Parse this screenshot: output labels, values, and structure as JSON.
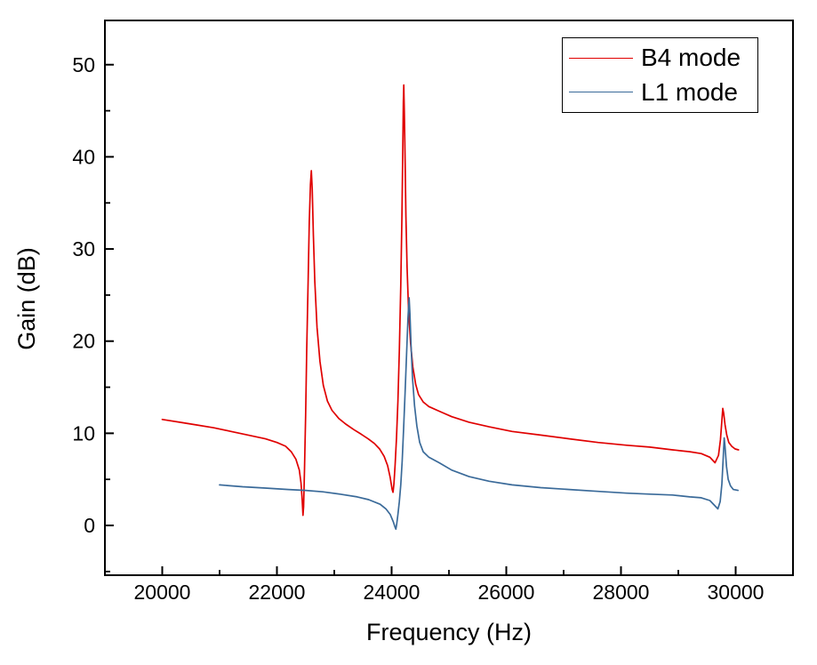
{
  "chart_data": {
    "type": "line",
    "title": "",
    "xlabel": "Frequency (Hz)",
    "ylabel": "Gain (dB)",
    "xlim": [
      19000,
      31000
    ],
    "ylim": [
      -5.4,
      54.8
    ],
    "xticks_major": [
      20000,
      22000,
      24000,
      26000,
      28000,
      30000
    ],
    "xticks_minor": [
      21000,
      23000,
      25000,
      27000,
      29000
    ],
    "yticks_major": [
      0,
      10,
      20,
      30,
      40,
      50
    ],
    "yticks_minor": [
      -5,
      5,
      15,
      25,
      35,
      45
    ],
    "grid": false,
    "legend_position": "top-right",
    "background_color": "#ffffff",
    "axis_color": "#000000",
    "series": [
      {
        "name": "B4 mode",
        "color": "#e00000",
        "points": [
          [
            20000,
            11.5
          ],
          [
            20300,
            11.2
          ],
          [
            20600,
            10.9
          ],
          [
            20900,
            10.6
          ],
          [
            21200,
            10.2
          ],
          [
            21500,
            9.8
          ],
          [
            21800,
            9.4
          ],
          [
            22000,
            9.0
          ],
          [
            22150,
            8.6
          ],
          [
            22250,
            8.0
          ],
          [
            22330,
            7.2
          ],
          [
            22390,
            6.0
          ],
          [
            22420,
            4.6
          ],
          [
            22440,
            2.8
          ],
          [
            22455,
            1.1
          ],
          [
            22465,
            2.0
          ],
          [
            22480,
            6.0
          ],
          [
            22500,
            12.0
          ],
          [
            22520,
            19.0
          ],
          [
            22545,
            27.0
          ],
          [
            22565,
            33.0
          ],
          [
            22585,
            37.0
          ],
          [
            22600,
            38.5
          ],
          [
            22615,
            36.5
          ],
          [
            22635,
            31.5
          ],
          [
            22660,
            26.5
          ],
          [
            22700,
            21.5
          ],
          [
            22750,
            17.8
          ],
          [
            22810,
            15.2
          ],
          [
            22880,
            13.5
          ],
          [
            22960,
            12.5
          ],
          [
            23080,
            11.6
          ],
          [
            23200,
            11.0
          ],
          [
            23340,
            10.4
          ],
          [
            23470,
            9.9
          ],
          [
            23590,
            9.4
          ],
          [
            23700,
            8.9
          ],
          [
            23790,
            8.3
          ],
          [
            23870,
            7.5
          ],
          [
            23930,
            6.5
          ],
          [
            23975,
            5.2
          ],
          [
            24010,
            3.9
          ],
          [
            24025,
            3.6
          ],
          [
            24040,
            4.5
          ],
          [
            24060,
            6.5
          ],
          [
            24085,
            9.5
          ],
          [
            24110,
            13.5
          ],
          [
            24135,
            19.0
          ],
          [
            24160,
            26.0
          ],
          [
            24180,
            33.5
          ],
          [
            24195,
            41.0
          ],
          [
            24205,
            46.0
          ],
          [
            24212,
            47.8
          ],
          [
            24222,
            45.0
          ],
          [
            24235,
            39.5
          ],
          [
            24250,
            33.5
          ],
          [
            24270,
            28.0
          ],
          [
            24295,
            23.5
          ],
          [
            24330,
            19.8
          ],
          [
            24370,
            17.2
          ],
          [
            24420,
            15.3
          ],
          [
            24470,
            14.2
          ],
          [
            24550,
            13.4
          ],
          [
            24650,
            12.9
          ],
          [
            24830,
            12.4
          ],
          [
            25050,
            11.8
          ],
          [
            25350,
            11.2
          ],
          [
            25700,
            10.7
          ],
          [
            26100,
            10.2
          ],
          [
            26600,
            9.8
          ],
          [
            27100,
            9.4
          ],
          [
            27600,
            9.0
          ],
          [
            28100,
            8.7
          ],
          [
            28500,
            8.5
          ],
          [
            28900,
            8.2
          ],
          [
            29200,
            8.0
          ],
          [
            29400,
            7.8
          ],
          [
            29550,
            7.4
          ],
          [
            29640,
            6.8
          ],
          [
            29700,
            7.6
          ],
          [
            29735,
            9.3
          ],
          [
            29762,
            11.5
          ],
          [
            29775,
            12.7
          ],
          [
            29790,
            12.2
          ],
          [
            29815,
            10.9
          ],
          [
            29845,
            9.8
          ],
          [
            29880,
            9.0
          ],
          [
            29930,
            8.6
          ],
          [
            29990,
            8.3
          ],
          [
            30050,
            8.2
          ]
        ]
      },
      {
        "name": "L1 mode",
        "color": "#3a6a99",
        "points": [
          [
            21000,
            4.4
          ],
          [
            21400,
            4.2
          ],
          [
            21800,
            4.05
          ],
          [
            22200,
            3.9
          ],
          [
            22500,
            3.8
          ],
          [
            22800,
            3.65
          ],
          [
            23100,
            3.4
          ],
          [
            23400,
            3.1
          ],
          [
            23600,
            2.8
          ],
          [
            23800,
            2.3
          ],
          [
            23900,
            1.8
          ],
          [
            23975,
            1.2
          ],
          [
            24030,
            0.4
          ],
          [
            24060,
            -0.2
          ],
          [
            24075,
            -0.4
          ],
          [
            24090,
            0.2
          ],
          [
            24110,
            1.2
          ],
          [
            24135,
            2.6
          ],
          [
            24160,
            4.4
          ],
          [
            24185,
            7.0
          ],
          [
            24210,
            10.5
          ],
          [
            24235,
            14.5
          ],
          [
            24260,
            18.5
          ],
          [
            24285,
            22.5
          ],
          [
            24305,
            24.7
          ],
          [
            24320,
            23.0
          ],
          [
            24340,
            19.5
          ],
          [
            24365,
            16.0
          ],
          [
            24400,
            13.0
          ],
          [
            24440,
            10.8
          ],
          [
            24490,
            9.0
          ],
          [
            24550,
            8.0
          ],
          [
            24650,
            7.4
          ],
          [
            24830,
            6.8
          ],
          [
            25050,
            6.0
          ],
          [
            25350,
            5.3
          ],
          [
            25700,
            4.8
          ],
          [
            26100,
            4.4
          ],
          [
            26600,
            4.1
          ],
          [
            27100,
            3.9
          ],
          [
            27600,
            3.7
          ],
          [
            28100,
            3.5
          ],
          [
            28500,
            3.4
          ],
          [
            28900,
            3.3
          ],
          [
            29200,
            3.1
          ],
          [
            29400,
            3.0
          ],
          [
            29550,
            2.7
          ],
          [
            29690,
            1.8
          ],
          [
            29730,
            2.6
          ],
          [
            29760,
            4.5
          ],
          [
            29785,
            7.5
          ],
          [
            29800,
            9.5
          ],
          [
            29815,
            8.5
          ],
          [
            29840,
            6.4
          ],
          [
            29870,
            5.0
          ],
          [
            29910,
            4.3
          ],
          [
            29960,
            3.9
          ],
          [
            30040,
            3.8
          ]
        ]
      }
    ]
  },
  "legend": {
    "items": [
      {
        "label": "B4 mode"
      },
      {
        "label": "L1 mode"
      }
    ]
  }
}
